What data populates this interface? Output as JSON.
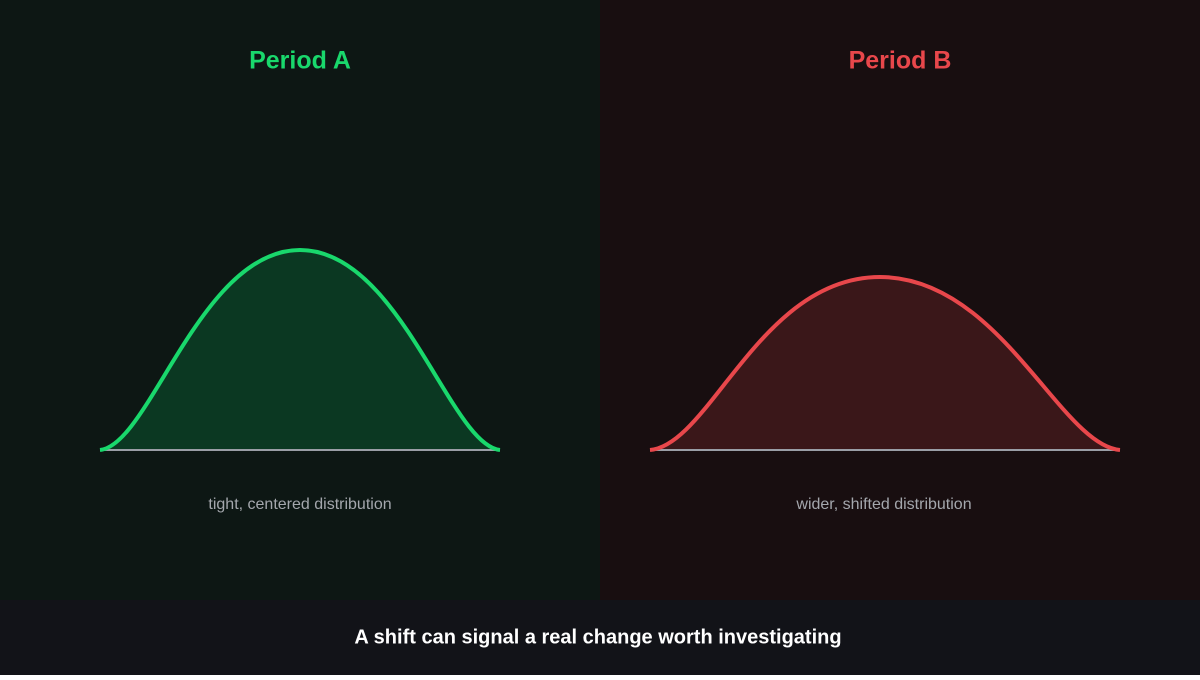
{
  "panels": [
    {
      "title": "Period A",
      "caption": "tight, centered distribution"
    },
    {
      "title": "Period B",
      "caption": "wider, shifted distribution"
    }
  ],
  "footer": "A shift can signal a real change worth investigating"
}
